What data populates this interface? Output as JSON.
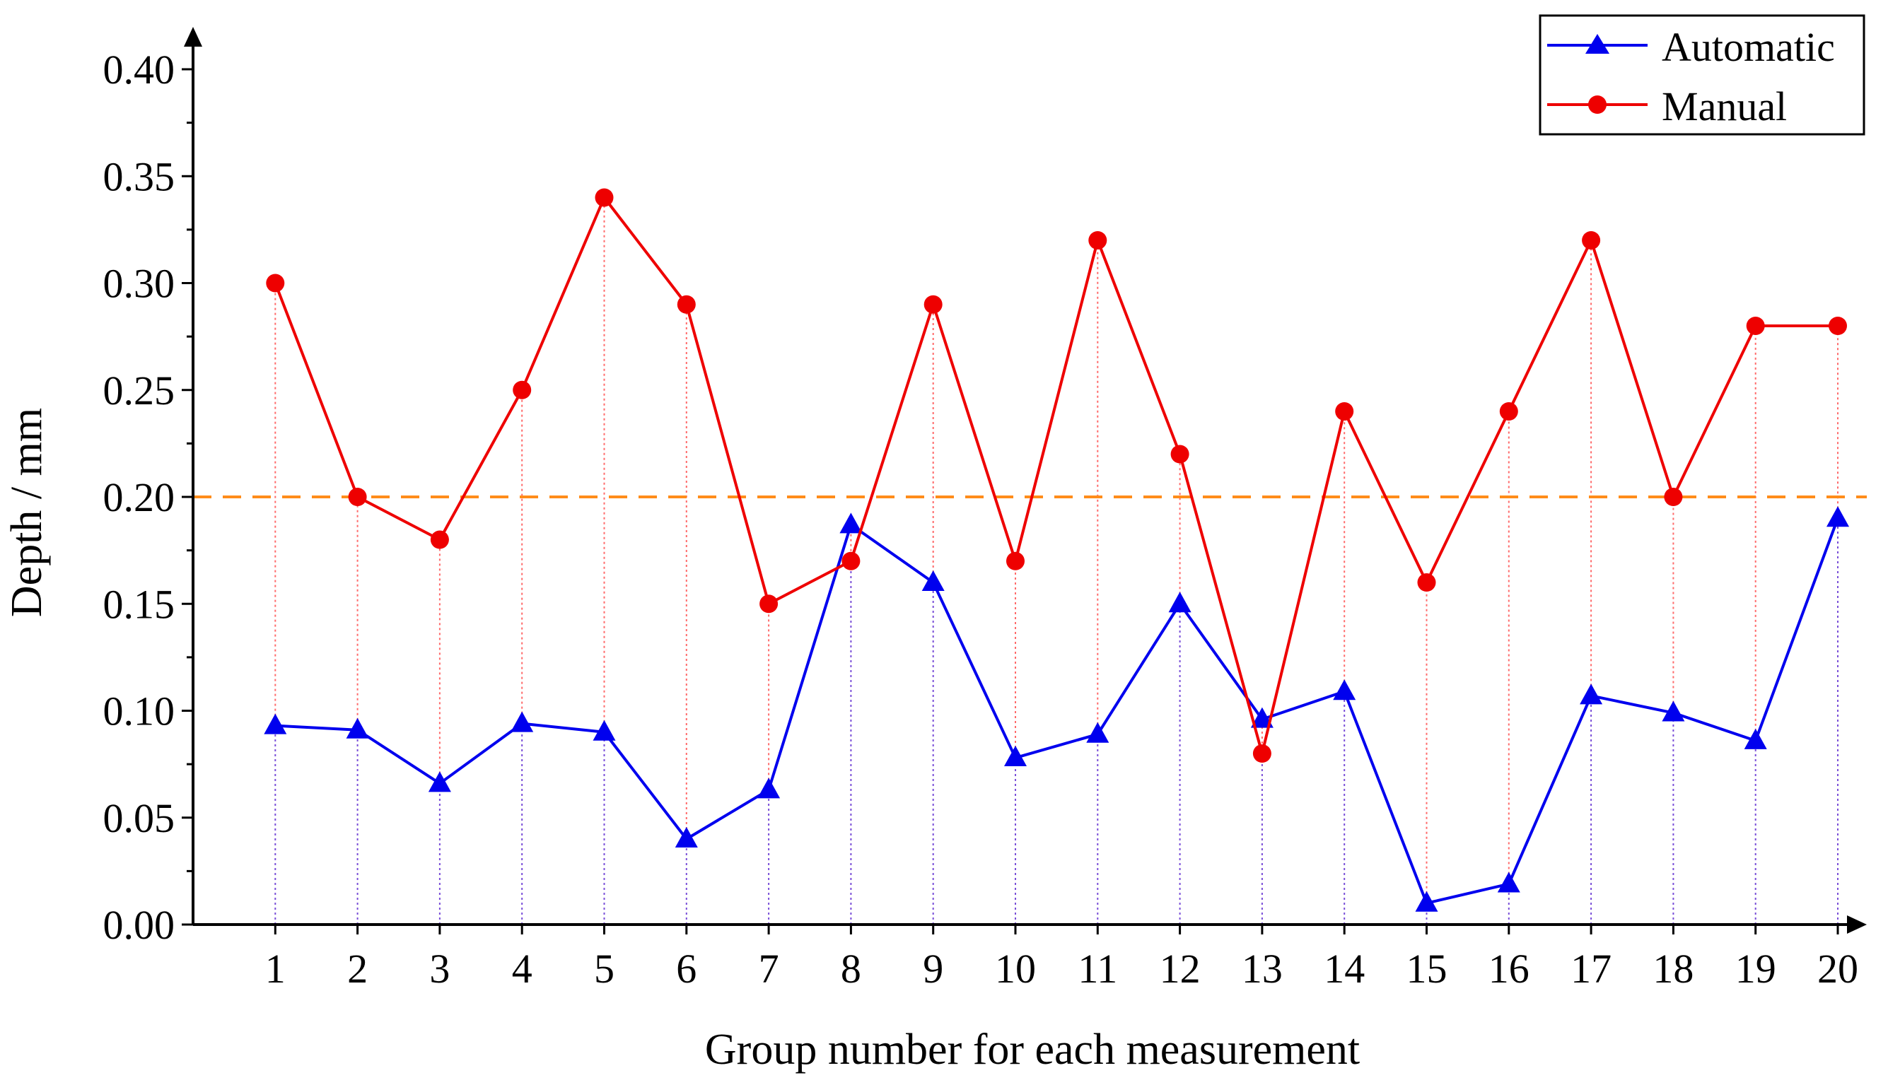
{
  "chart_data": {
    "type": "line",
    "title": "",
    "xlabel": "Group number for each measurement",
    "ylabel": "Depth / mm",
    "x": [
      1,
      2,
      3,
      4,
      5,
      6,
      7,
      8,
      9,
      10,
      11,
      12,
      13,
      14,
      15,
      16,
      17,
      18,
      19,
      20
    ],
    "x_tick_labels": [
      "1",
      "2",
      "3",
      "4",
      "5",
      "6",
      "7",
      "8",
      "9",
      "10",
      "11",
      "12",
      "13",
      "14",
      "15",
      "16",
      "17",
      "18",
      "19",
      "20"
    ],
    "xlim": [
      0,
      21
    ],
    "ylim": [
      0,
      0.4
    ],
    "y_ticks": [
      0,
      0.05,
      0.1,
      0.15,
      0.2,
      0.25,
      0.3,
      0.35,
      0.4
    ],
    "y_tick_labels": [
      "0.00",
      "0.05",
      "0.10",
      "0.15",
      "0.20",
      "0.25",
      "0.30",
      "0.35",
      "0.40"
    ],
    "series": [
      {
        "name": "Automatic",
        "marker": "triangle",
        "color": "#0000ee",
        "values": [
          0.093,
          0.091,
          0.066,
          0.094,
          0.09,
          0.04,
          0.063,
          0.187,
          0.16,
          0.078,
          0.089,
          0.15,
          0.096,
          0.109,
          0.01,
          0.019,
          0.107,
          0.099,
          0.086,
          0.19
        ]
      },
      {
        "name": "Manual",
        "marker": "circle",
        "color": "#ee0000",
        "values": [
          0.3,
          0.2,
          0.18,
          0.25,
          0.34,
          0.29,
          0.15,
          0.17,
          0.29,
          0.17,
          0.32,
          0.22,
          0.08,
          0.24,
          0.16,
          0.24,
          0.32,
          0.2,
          0.28,
          0.28
        ]
      }
    ],
    "reference_line": {
      "y": 0.2,
      "style": "dashed",
      "color": "#ff8c1a"
    },
    "drop_lines": true,
    "grid": false,
    "legend_position": "top-right"
  }
}
